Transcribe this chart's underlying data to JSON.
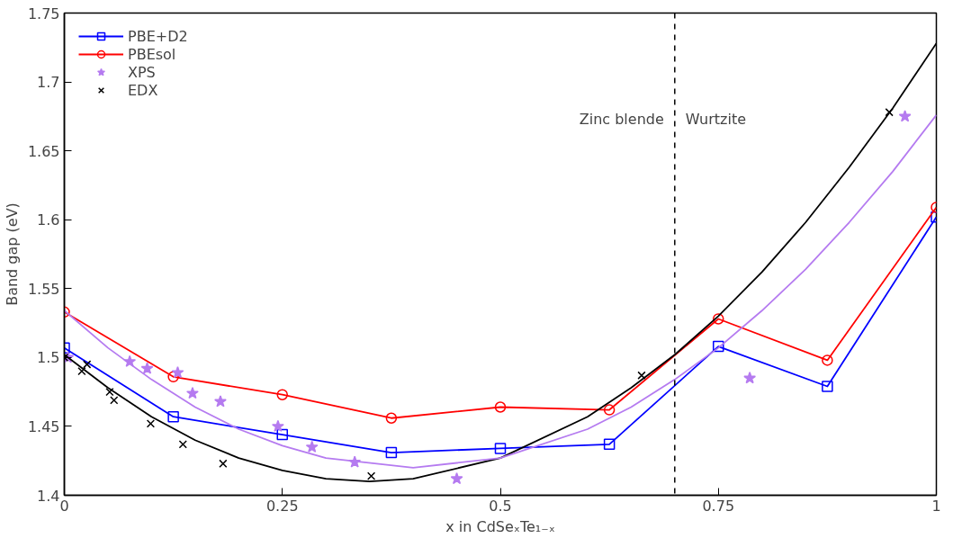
{
  "chart_data": {
    "type": "line",
    "xlabel": "x in CdSeₓTe₁₋ₓ",
    "ylabel": "Band gap (eV)",
    "xlim": [
      0,
      1
    ],
    "xticks": [
      0,
      0.25,
      0.5,
      0.75,
      1
    ],
    "ylim": [
      1.4,
      1.75
    ],
    "yticks": [
      1.4,
      1.45,
      1.5,
      1.55,
      1.6,
      1.65,
      1.7,
      1.75
    ],
    "legend": "top left",
    "grid": false,
    "series": [
      {
        "name": "PBE+D2",
        "marker": "square",
        "color": "#0000ff",
        "x": [
          0,
          0.125,
          0.25,
          0.375,
          0.5,
          0.625,
          0.75,
          0.875,
          1
        ],
        "values": [
          1.507,
          1.457,
          1.444,
          1.431,
          1.434,
          1.437,
          1.508,
          1.479,
          1.602
        ]
      },
      {
        "name": "PBEsol",
        "marker": "circle",
        "color": "#ff0000",
        "x": [
          0,
          0.125,
          0.25,
          0.375,
          0.5,
          0.625,
          0.75,
          0.875,
          1
        ],
        "values": [
          1.533,
          1.486,
          1.473,
          1.456,
          1.464,
          1.462,
          1.528,
          1.498,
          1.609
        ]
      },
      {
        "name": "XPS",
        "type": "scatter",
        "marker": "star",
        "color": "#b57bf0",
        "x": [
          0.004,
          0.075,
          0.095,
          0.13,
          0.147,
          0.179,
          0.245,
          0.284,
          0.333,
          0.45,
          0.786,
          0.964
        ],
        "values": [
          1.5,
          1.497,
          1.492,
          1.489,
          1.474,
          1.468,
          1.45,
          1.435,
          1.424,
          1.412,
          1.485,
          1.675
        ]
      },
      {
        "name": "EDX",
        "type": "scatter",
        "marker": "cross",
        "color": "#000000",
        "x": [
          0,
          0.02,
          0.026,
          0.052,
          0.057,
          0.099,
          0.136,
          0.182,
          0.352,
          0.662,
          0.946
        ],
        "values": [
          1.5,
          1.49,
          1.495,
          1.475,
          1.469,
          1.452,
          1.437,
          1.423,
          1.414,
          1.487,
          1.678
        ]
      },
      {
        "marker": "none",
        "color": "#000000",
        "x": [
          0,
          0.05,
          0.1,
          0.15,
          0.2,
          0.25,
          0.3,
          0.35,
          0.4,
          0.5,
          0.6,
          0.65,
          0.7,
          0.75,
          0.8,
          0.85,
          0.9,
          0.95,
          1
        ],
        "values": [
          1.502,
          1.478,
          1.457,
          1.44,
          1.427,
          1.418,
          1.412,
          1.41,
          1.412,
          1.427,
          1.457,
          1.478,
          1.502,
          1.53,
          1.562,
          1.598,
          1.638,
          1.681,
          1.728
        ]
      },
      {
        "marker": "none",
        "color": "#b57bf0",
        "x": [
          0,
          0.05,
          0.1,
          0.15,
          0.2,
          0.25,
          0.3,
          0.4,
          0.5,
          0.6,
          0.65,
          0.7,
          0.75,
          0.8,
          0.85,
          0.9,
          0.95,
          1
        ],
        "values": [
          1.534,
          1.507,
          1.484,
          1.464,
          1.448,
          1.436,
          1.427,
          1.42,
          1.427,
          1.448,
          1.464,
          1.484,
          1.507,
          1.534,
          1.564,
          1.598,
          1.635,
          1.676
        ]
      }
    ],
    "ref_lines": [
      {
        "axis": "x",
        "value": 0.7,
        "color": "#000000",
        "line_style": "dashed"
      }
    ],
    "annotations": [
      "Zinc blende",
      "Wurtzite"
    ]
  }
}
